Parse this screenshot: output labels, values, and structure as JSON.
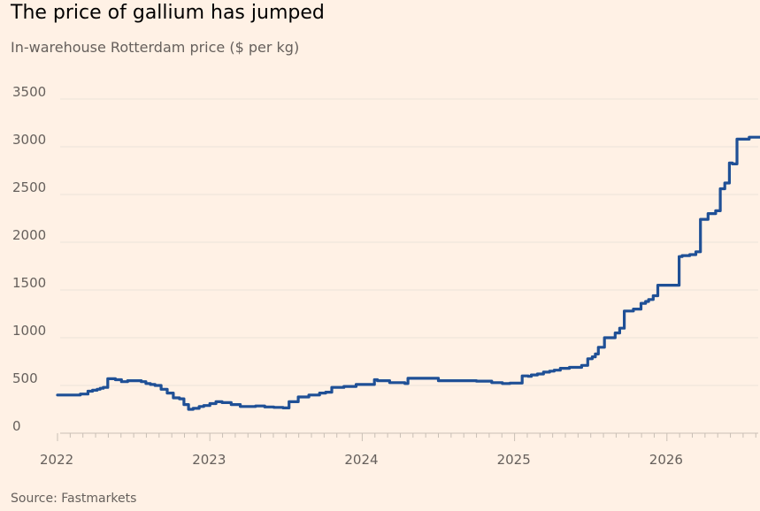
{
  "header": {
    "title": "The price of gallium has jumped",
    "subtitle": "In-warehouse Rotterdam price ($ per kg)"
  },
  "footer": {
    "source": "Source: Fastmarkets"
  },
  "colors": {
    "background": "#fff1e5",
    "line": "#1f5096",
    "grid": "#ebe2d9",
    "text": "#66605c"
  },
  "chart_data": {
    "type": "line",
    "title": "The price of gallium has jumped",
    "subtitle": "In-warehouse Rotterdam price ($ per kg)",
    "xlabel": "",
    "ylabel": "",
    "ylim": [
      0,
      3500
    ],
    "yticks": [
      0,
      500,
      1000,
      1500,
      2000,
      2500,
      3000,
      3500
    ],
    "xlim": [
      2022.0,
      2026.75
    ],
    "xticks": [
      "2022",
      "2023",
      "2024",
      "2025",
      "2026"
    ],
    "grid": true,
    "series": [
      {
        "name": "",
        "step": true,
        "x": [
          2022.0,
          2022.1,
          2022.15,
          2022.2,
          2022.23,
          2022.26,
          2022.28,
          2022.3,
          2022.33,
          2022.35,
          2022.38,
          2022.42,
          2022.46,
          2022.5,
          2022.55,
          2022.58,
          2022.61,
          2022.64,
          2022.68,
          2022.72,
          2022.76,
          2022.8,
          2022.83,
          2022.86,
          2022.89,
          2022.93,
          2022.96,
          2023.0,
          2023.04,
          2023.08,
          2023.14,
          2023.2,
          2023.24,
          2023.3,
          2023.36,
          2023.42,
          2023.48,
          2023.52,
          2023.58,
          2023.65,
          2023.72,
          2023.76,
          2023.8,
          2023.88,
          2023.96,
          2024.08,
          2024.1,
          2024.18,
          2024.25,
          2024.28,
          2024.3,
          2024.5,
          2024.75,
          2024.85,
          2024.92,
          2024.97,
          2025.05,
          2025.09,
          2025.11,
          2025.15,
          2025.19,
          2025.23,
          2025.26,
          2025.3,
          2025.36,
          2025.42,
          2025.44,
          2025.48,
          2025.51,
          2025.53,
          2025.55,
          2025.59,
          2025.63,
          2025.66,
          2025.69,
          2025.72,
          2025.78,
          2025.83,
          2025.86,
          2025.88,
          2025.91,
          2025.94,
          2026.08,
          2026.1,
          2026.15,
          2026.19,
          2026.22,
          2026.27,
          2026.32,
          2026.35,
          2026.38,
          2026.41,
          2026.43,
          2026.46,
          2026.54,
          2026.57,
          2026.6,
          2026.63,
          2026.75
        ],
        "values": [
          400,
          400,
          410,
          440,
          450,
          460,
          470,
          480,
          570,
          570,
          560,
          540,
          550,
          550,
          540,
          520,
          510,
          500,
          460,
          420,
          370,
          360,
          300,
          250,
          260,
          280,
          290,
          310,
          330,
          320,
          300,
          280,
          280,
          285,
          275,
          270,
          265,
          330,
          380,
          400,
          420,
          430,
          480,
          490,
          510,
          560,
          550,
          530,
          530,
          520,
          575,
          550,
          545,
          530,
          520,
          525,
          600,
          595,
          610,
          620,
          640,
          650,
          660,
          680,
          690,
          690,
          710,
          780,
          800,
          830,
          900,
          1000,
          1000,
          1050,
          1100,
          1280,
          1300,
          1360,
          1380,
          1400,
          1440,
          1550,
          1850,
          1860,
          1870,
          1900,
          2240,
          2300,
          2330,
          2560,
          2620,
          2830,
          2820,
          3080,
          3100,
          3100,
          3100,
          3100,
          3100
        ]
      }
    ]
  }
}
